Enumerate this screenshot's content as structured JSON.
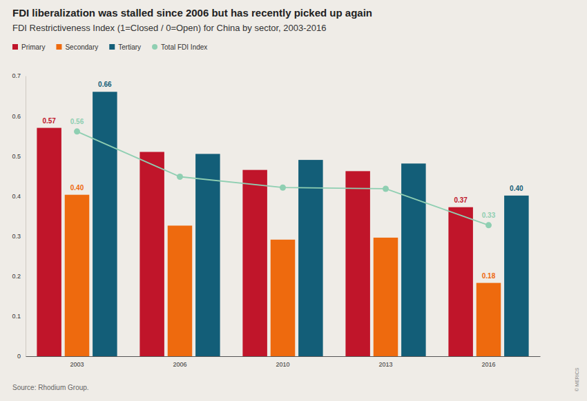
{
  "chart_data": {
    "type": "bar",
    "title": "FDI liberalization was stalled since 2006 but has recently picked up again",
    "subtitle": "FDI Restrictiveness Index (1=Closed / 0=Open) for China by sector, 2003-2016",
    "source": "Source: Rhodium Group.",
    "credit": "© MERICS",
    "categories": [
      "2003",
      "2006",
      "2010",
      "2013",
      "2016"
    ],
    "series": [
      {
        "name": "Primary",
        "color": "#c0152a",
        "values": [
          0.57,
          0.51,
          0.465,
          0.462,
          0.372
        ],
        "value_labels": [
          "0.57",
          null,
          null,
          null,
          "0.37"
        ]
      },
      {
        "name": "Secondary",
        "color": "#ee6a0e",
        "values": [
          0.403,
          0.326,
          0.291,
          0.296,
          0.183
        ],
        "value_labels": [
          "0.40",
          null,
          null,
          null,
          "0.18"
        ]
      },
      {
        "name": "Tertiary",
        "color": "#135e78",
        "values": [
          0.66,
          0.505,
          0.49,
          0.481,
          0.401
        ],
        "value_labels": [
          "0.66",
          null,
          null,
          null,
          "0.40"
        ]
      },
      {
        "name": "Total FDI Index",
        "color": "#8fcfb2",
        "type": "line",
        "marker": "circle",
        "values": [
          0.561,
          0.448,
          0.421,
          0.418,
          0.327
        ],
        "value_labels": [
          "0.56",
          null,
          null,
          null,
          "0.33"
        ]
      }
    ],
    "ylim": [
      0,
      0.7
    ],
    "yticks": [
      0,
      0.1,
      0.2,
      0.3,
      0.4,
      0.5,
      0.6,
      0.7
    ],
    "grid": false,
    "legend": "top-left",
    "data_labels": true
  }
}
